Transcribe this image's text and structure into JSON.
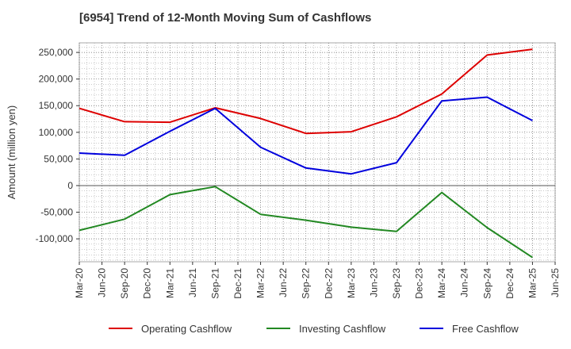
{
  "title": "[6954]  Trend of 12-Month Moving Sum of Cashflows",
  "chart_data": {
    "type": "line",
    "title": "[6954]  Trend of 12-Month Moving Sum of Cashflows",
    "xlabel": "",
    "ylabel": "Amount (million yen)",
    "x_ticks": [
      "Mar-20",
      "Jun-20",
      "Sep-20",
      "Dec-20",
      "Mar-21",
      "Jun-21",
      "Sep-21",
      "Dec-21",
      "Mar-22",
      "Jun-22",
      "Sep-22",
      "Dec-22",
      "Mar-23",
      "Jun-23",
      "Sep-23",
      "Dec-23",
      "Mar-24",
      "Jun-24",
      "Sep-24",
      "Dec-24",
      "Mar-25",
      "Jun-25"
    ],
    "y_ticks": [
      250000,
      200000,
      150000,
      100000,
      50000,
      0,
      -50000,
      -100000
    ],
    "y_tick_labels": [
      "250,000",
      "200,000",
      "150,000",
      "100,000",
      "50,000",
      "0",
      "-50,000",
      "-100,000"
    ],
    "ylim": [
      -143000,
      268000
    ],
    "grid": true,
    "legend_position": "bottom",
    "series": [
      {
        "name": "Operating Cashflow",
        "color": "#dd0000",
        "x": [
          "Mar-20",
          "Sep-20",
          "Mar-21",
          "Sep-21",
          "Mar-22",
          "Sep-22",
          "Mar-23",
          "Sep-23",
          "Mar-24",
          "Sep-24",
          "Mar-25"
        ],
        "values": [
          145000,
          120000,
          119000,
          146000,
          126000,
          98000,
          101000,
          129000,
          172000,
          245000,
          256000
        ]
      },
      {
        "name": "Investing Cashflow",
        "color": "#228822",
        "x": [
          "Mar-20",
          "Sep-20",
          "Mar-21",
          "Sep-21",
          "Mar-22",
          "Sep-22",
          "Mar-23",
          "Sep-23",
          "Mar-24",
          "Sep-24",
          "Mar-25"
        ],
        "values": [
          -84000,
          -63000,
          -17000,
          -2000,
          -54000,
          -65000,
          -78000,
          -86000,
          -13000,
          -79000,
          -135000
        ]
      },
      {
        "name": "Free Cashflow",
        "color": "#0000dd",
        "x": [
          "Mar-20",
          "Sep-20",
          "Mar-21",
          "Sep-21",
          "Mar-22",
          "Sep-22",
          "Mar-23",
          "Sep-23",
          "Mar-24",
          "Sep-24",
          "Mar-25"
        ],
        "values": [
          61000,
          57000,
          102000,
          145000,
          72000,
          33000,
          22000,
          43000,
          159000,
          166000,
          122000
        ]
      }
    ]
  }
}
